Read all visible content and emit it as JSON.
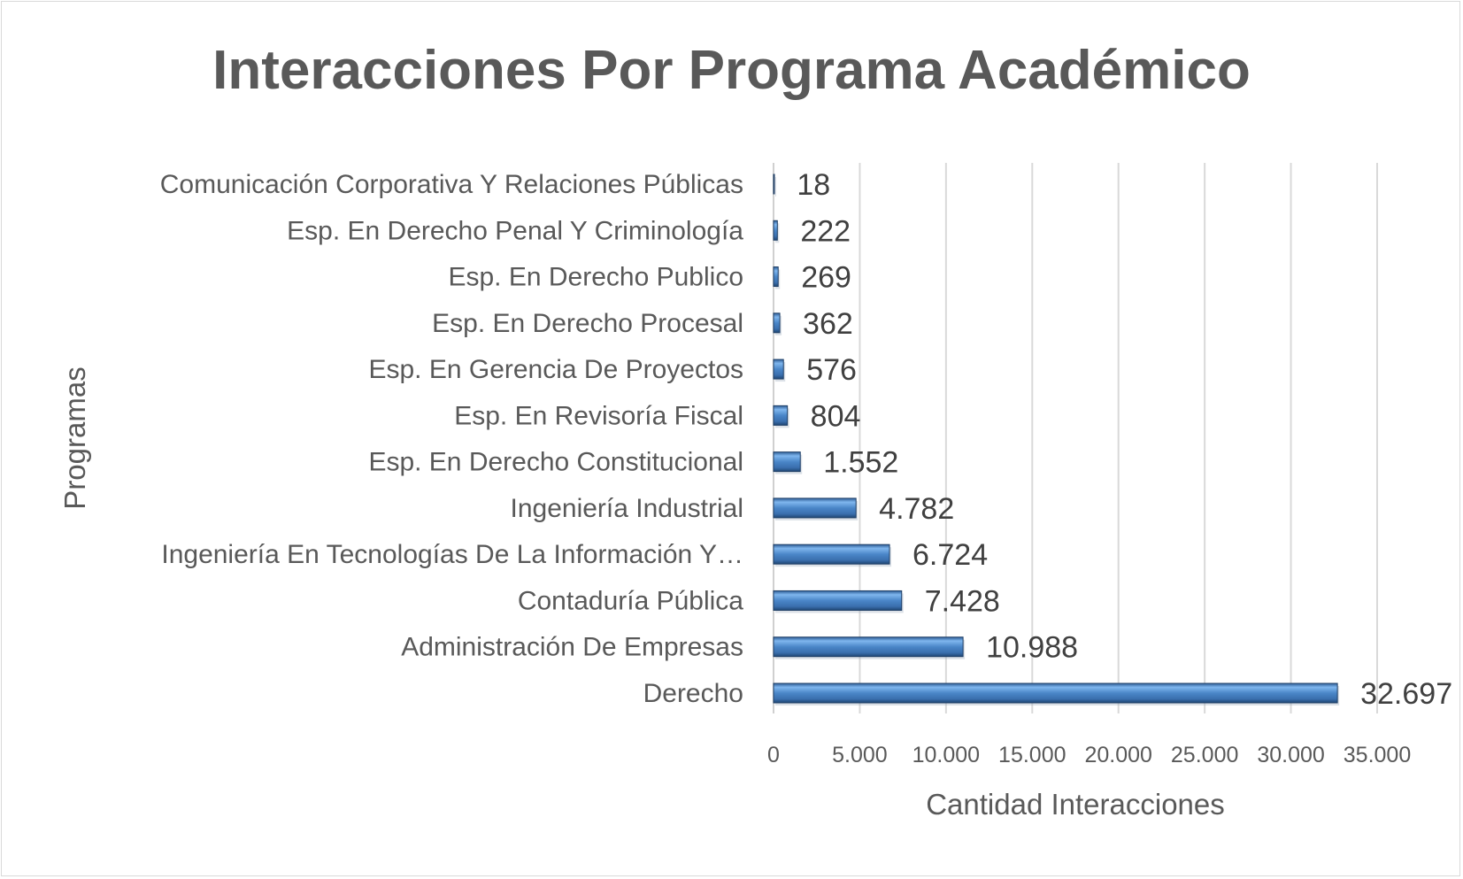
{
  "chart_data": {
    "type": "bar",
    "orientation": "horizontal",
    "title": "Interacciones Por Programa Académico",
    "xlabel": "Cantidad Interacciones",
    "ylabel": "Programas",
    "xlim": [
      0,
      35000
    ],
    "xticks": [
      0,
      5000,
      10000,
      15000,
      20000,
      25000,
      30000,
      35000
    ],
    "xtick_labels": [
      "0",
      "5.000",
      "10.000",
      "15.000",
      "20.000",
      "25.000",
      "30.000",
      "35.000"
    ],
    "grid": true,
    "categories": [
      "Comunicación Corporativa Y Relaciones Públicas",
      "Esp. En Derecho Penal Y Criminología",
      "Esp. En Derecho Publico",
      "Esp. En Derecho Procesal",
      "Esp. En Gerencia De Proyectos",
      "Esp. En Revisoría Fiscal",
      "Esp. En Derecho Constitucional",
      "Ingeniería Industrial",
      "Ingeniería En Tecnologías De La Información Y…",
      "Contaduría Pública",
      "Administración De Empresas",
      "Derecho"
    ],
    "values": [
      18,
      222,
      269,
      362,
      576,
      804,
      1552,
      4782,
      6724,
      7428,
      10988,
      32697
    ],
    "value_labels": [
      "18",
      "222",
      "269",
      "362",
      "576",
      "804",
      "1.552",
      "4.782",
      "6.724",
      "7.428",
      "10.988",
      "32.697"
    ],
    "bar_color": "#4a86c8"
  }
}
